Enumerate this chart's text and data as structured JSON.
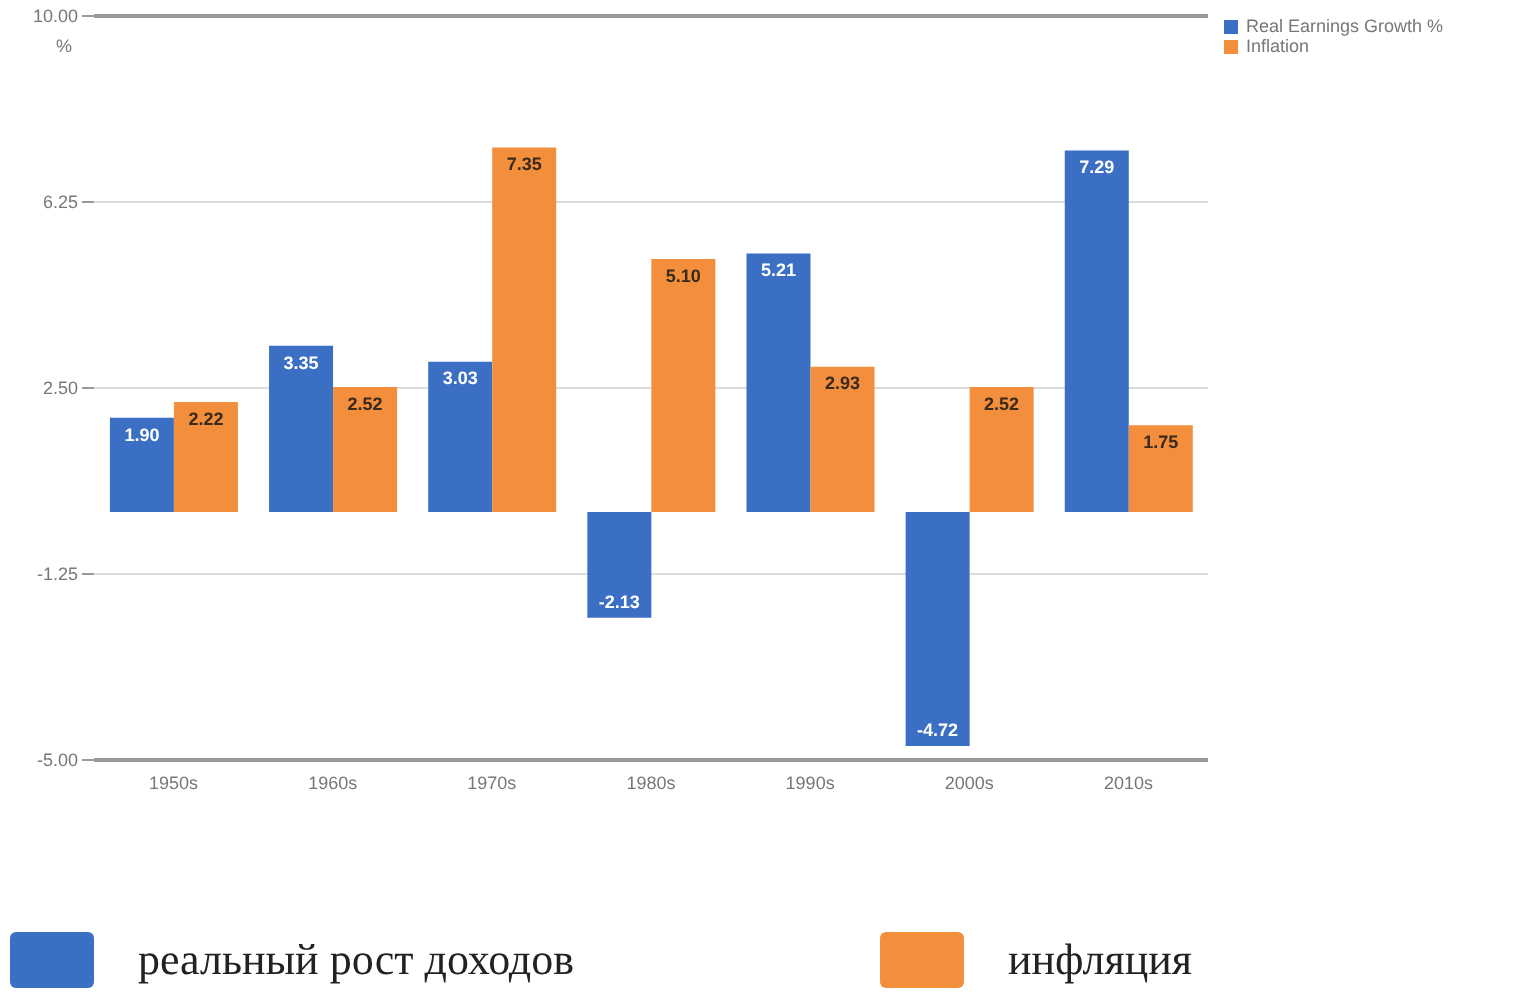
{
  "chart_data": {
    "type": "bar",
    "ylabel": "%",
    "categories": [
      "1950s",
      "1960s",
      "1970s",
      "1980s",
      "1990s",
      "2000s",
      "2010s"
    ],
    "series": [
      {
        "name": "Real Earnings Growth %",
        "color": "#3a6fc4",
        "values": [
          1.9,
          3.35,
          3.03,
          -2.13,
          5.21,
          -4.72,
          7.29
        ],
        "value_labels": [
          "1.90",
          "3.35",
          "3.03",
          "-2.13",
          "5.21",
          "-4.72",
          "7.29"
        ]
      },
      {
        "name": "Inflation",
        "color": "#f28e3c",
        "values": [
          2.22,
          2.52,
          7.35,
          5.1,
          2.93,
          2.52,
          1.75
        ],
        "value_labels": [
          "2.22",
          "2.52",
          "7.35",
          "5.10",
          "2.93",
          "2.52",
          "1.75"
        ]
      }
    ],
    "ylim": [
      -5,
      10
    ],
    "yticks": [
      {
        "value": -5,
        "label": "-5.00"
      },
      {
        "value": -1.25,
        "label": "-1.25"
      },
      {
        "value": 2.5,
        "label": "2.50"
      },
      {
        "value": 6.25,
        "label": "6.25"
      },
      {
        "value": 10,
        "label": "10.00"
      }
    ],
    "grid": "y",
    "legend": "top right",
    "annotations": [
      "реальный рост доходов",
      "инфляция"
    ]
  }
}
